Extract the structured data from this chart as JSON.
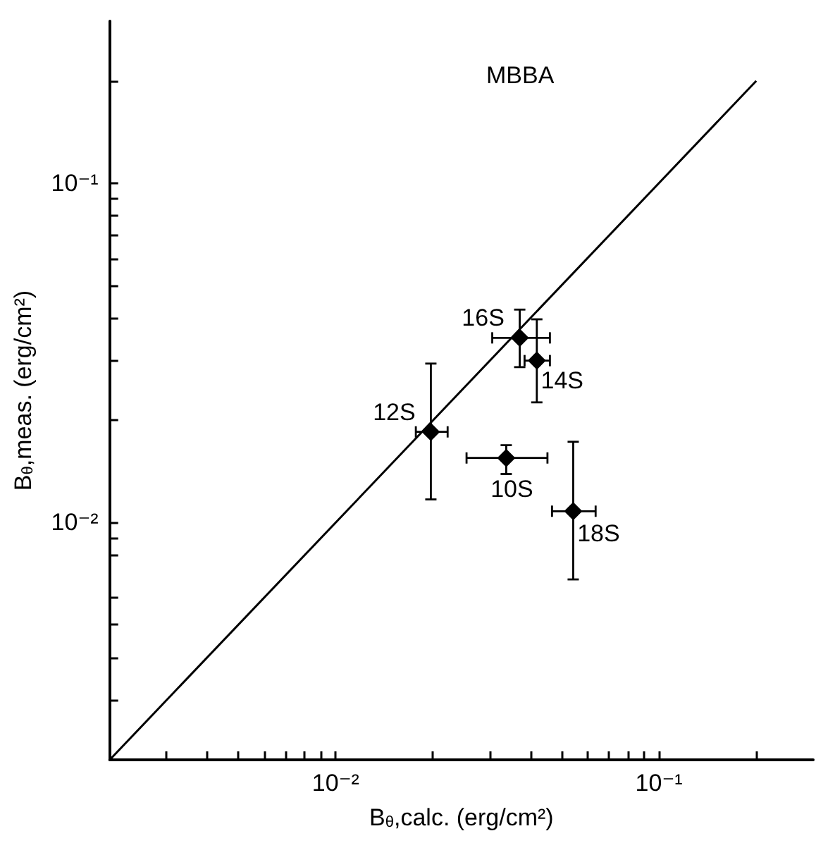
{
  "chart_data": {
    "type": "scatter",
    "title": "MBBA",
    "xlabel": "B$_{θ}$,calc. (erg/cm²)",
    "ylabel": "B$_{θ}$,meas. (erg/cm²)",
    "log": "xy",
    "grid": false,
    "marker": "diamond",
    "xlim": [
      0.002,
      0.3
    ],
    "ylim": [
      0.002,
      0.3
    ],
    "xticks": [
      {
        "value": 0.003,
        "label": null
      },
      {
        "value": 0.004,
        "label": null
      },
      {
        "value": 0.005,
        "label": null
      },
      {
        "value": 0.006,
        "label": null
      },
      {
        "value": 0.007,
        "label": null
      },
      {
        "value": 0.008,
        "label": null
      },
      {
        "value": 0.009,
        "label": null
      },
      {
        "value": 0.01,
        "label": "10⁻²"
      },
      {
        "value": 0.02,
        "label": null
      },
      {
        "value": 0.03,
        "label": null
      },
      {
        "value": 0.04,
        "label": null
      },
      {
        "value": 0.05,
        "label": null
      },
      {
        "value": 0.06,
        "label": null
      },
      {
        "value": 0.07,
        "label": null
      },
      {
        "value": 0.08,
        "label": null
      },
      {
        "value": 0.09,
        "label": null
      },
      {
        "value": 0.1,
        "label": "10⁻¹"
      },
      {
        "value": 0.2,
        "label": null
      }
    ],
    "yticks": [
      {
        "value": 0.003,
        "label": null
      },
      {
        "value": 0.004,
        "label": null
      },
      {
        "value": 0.005,
        "label": null
      },
      {
        "value": 0.006,
        "label": null
      },
      {
        "value": 0.008,
        "label": null
      },
      {
        "value": 0.009,
        "label": null
      },
      {
        "value": 0.01,
        "label": "10⁻²"
      },
      {
        "value": 0.02,
        "label": null
      },
      {
        "value": 0.03,
        "label": null
      },
      {
        "value": 0.04,
        "label": null
      },
      {
        "value": 0.05,
        "label": null
      },
      {
        "value": 0.06,
        "label": null
      },
      {
        "value": 0.07,
        "label": null
      },
      {
        "value": 0.08,
        "label": null
      },
      {
        "value": 0.09,
        "label": null
      },
      {
        "value": 0.1,
        "label": "10⁻¹"
      },
      {
        "value": 0.2,
        "label": null
      }
    ],
    "series": [
      {
        "color": "#000000",
        "x": [
          0.0371,
          0.0419,
          0.0197,
          0.0337,
          0.0543
        ],
        "values": [
          0.035,
          0.03,
          0.0185,
          0.0155,
          0.0108
        ],
        "xerrors": [
          [
            0.0305,
            0.046
          ],
          [
            0.0384,
            0.046
          ],
          [
            0.0177,
            0.0222
          ],
          [
            0.0254,
            0.0452
          ],
          [
            0.0467,
            0.0637
          ]
        ],
        "errors": [
          [
            0.0287,
            0.0424
          ],
          [
            0.0226,
            0.0397
          ],
          [
            0.0117,
            0.0294
          ],
          [
            0.0139,
            0.0169
          ],
          [
            0.0068,
            0.0173
          ]
        ]
      },
      {
        "type": "line",
        "color": "#000000",
        "marker": "none",
        "x": [
          0.002,
          0.2
        ],
        "values": [
          0.002,
          0.2
        ]
      }
    ],
    "annotations": [
      {
        "text": "16S",
        "x": 0.0371,
        "y": 0.035
      },
      {
        "text": "14S",
        "x": 0.0419,
        "y": 0.03
      },
      {
        "text": "12S",
        "x": 0.0197,
        "y": 0.0185
      },
      {
        "text": "10S",
        "x": 0.0337,
        "y": 0.0155
      },
      {
        "text": "18S",
        "x": 0.0543,
        "y": 0.0108
      }
    ]
  }
}
